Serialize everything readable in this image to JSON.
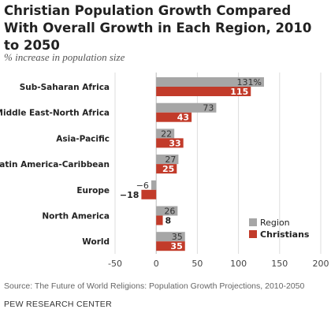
{
  "chart_data": {
    "type": "bar",
    "orientation": "horizontal",
    "title": "Christian Population Growth Compared With Overall Growth in Each Region, 2010 to 2050",
    "subtitle": "% increase in population size",
    "categories": [
      "Sub-Saharan Africa",
      "Middle East-North Africa",
      "Asia-Pacific",
      "Latin America-Caribbean",
      "Europe",
      "North America",
      "World"
    ],
    "series": [
      {
        "name": "Region",
        "color": "#a6a6a6",
        "values": [
          131,
          73,
          22,
          27,
          -6,
          26,
          35
        ],
        "labels": [
          "131%",
          "73",
          "22",
          "27",
          "−6",
          "26",
          "35"
        ]
      },
      {
        "name": "Christians",
        "color": "#c23b2a",
        "values": [
          115,
          43,
          33,
          25,
          -18,
          8,
          35
        ],
        "labels": [
          "115",
          "43",
          "33",
          "25",
          "−18",
          "8",
          "35"
        ]
      }
    ],
    "xlim": [
      -50,
      200
    ],
    "xticks": [
      "-50",
      "0",
      "50",
      "100",
      "150",
      "200"
    ],
    "grid": true,
    "legend_position": "bottom-right"
  },
  "source": "Source: The Future of World Religions: Population Growth Projections, 2010-2050",
  "organization": "PEW RESEARCH CENTER"
}
